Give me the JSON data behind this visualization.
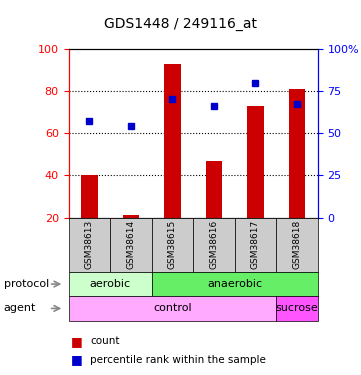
{
  "title": "GDS1448 / 249116_at",
  "samples": [
    "GSM38613",
    "GSM38614",
    "GSM38615",
    "GSM38616",
    "GSM38617",
    "GSM38618"
  ],
  "bar_values": [
    40,
    21,
    93,
    47,
    73,
    81
  ],
  "bar_bottom": [
    20,
    20,
    20,
    20,
    20,
    20
  ],
  "percentile_values": [
    57,
    54,
    70,
    66,
    80,
    67
  ],
  "bar_color": "#cc0000",
  "percentile_color": "#0000cc",
  "ylim_left": [
    20,
    100
  ],
  "ylim_right": [
    0,
    100
  ],
  "yticks_left": [
    20,
    40,
    60,
    80,
    100
  ],
  "yticks_right": [
    0,
    25,
    50,
    75,
    100
  ],
  "ytick_right_labels": [
    "0",
    "25",
    "50",
    "75",
    "100%"
  ],
  "grid_values": [
    40,
    60,
    80
  ],
  "protocol_aerobic_label": "aerobic",
  "protocol_anaerobic_label": "anaerobic",
  "agent_control_label": "control",
  "agent_sucrose_label": "sucrose",
  "aerobic_color": "#ccffcc",
  "anaerobic_color": "#66ee66",
  "control_color": "#ffaaff",
  "sucrose_color": "#ff55ff",
  "sample_box_color": "#cccccc",
  "legend_count_label": "count",
  "legend_percentile_label": "percentile rank within the sample",
  "protocol_label": "protocol",
  "agent_label": "agent",
  "background_color": "#ffffff",
  "plot_bg_color": "#ffffff",
  "bar_width": 0.4
}
